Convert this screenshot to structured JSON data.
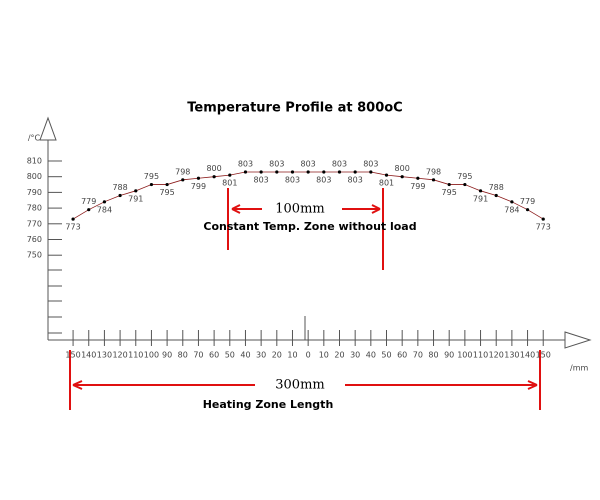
{
  "chart_data": {
    "type": "line",
    "title": "Temperature Profile at 800oC",
    "y_label": "/°C",
    "x_label": "/mm",
    "annotations": [
      "100mm",
      "Constant Temp. Zone without load",
      "300mm",
      "Heating Zone Length"
    ],
    "x": [
      -150,
      -140,
      -130,
      -120,
      -110,
      -100,
      -90,
      -80,
      -70,
      -60,
      -50,
      -40,
      -30,
      -20,
      -10,
      0,
      10,
      20,
      30,
      40,
      50,
      60,
      70,
      80,
      90,
      100,
      110,
      120,
      130,
      140,
      150
    ],
    "series": [
      {
        "color": "#8b1a1a",
        "values": [
          773,
          779,
          784,
          788,
          791,
          795,
          795,
          798,
          799,
          800,
          801,
          803,
          803,
          803,
          803,
          803,
          803,
          803,
          803,
          803,
          801,
          800,
          799,
          798,
          795,
          795,
          791,
          788,
          784,
          779,
          773
        ]
      }
    ],
    "xlim": [
      -166,
      169
    ],
    "ylim": [
      696,
      824
    ],
    "xticks": [
      {
        "value": -150,
        "label": "150"
      },
      {
        "value": -140,
        "label": "140"
      },
      {
        "value": -130,
        "label": "130"
      },
      {
        "value": -120,
        "label": "120"
      },
      {
        "value": -110,
        "label": "110"
      },
      {
        "value": -100,
        "label": "100"
      },
      {
        "value": -90,
        "label": "90"
      },
      {
        "value": -80,
        "label": "80"
      },
      {
        "value": -70,
        "label": "70"
      },
      {
        "value": -60,
        "label": "60"
      },
      {
        "value": -50,
        "label": "50"
      },
      {
        "value": -40,
        "label": "40"
      },
      {
        "value": -30,
        "label": "30"
      },
      {
        "value": -20,
        "label": "20"
      },
      {
        "value": -10,
        "label": "10"
      },
      0,
      10,
      20,
      30,
      40,
      50,
      60,
      70,
      80,
      90,
      100,
      110,
      120,
      130,
      140,
      150
    ],
    "yticks": [
      750,
      760,
      770,
      780,
      790,
      800,
      810
    ]
  }
}
